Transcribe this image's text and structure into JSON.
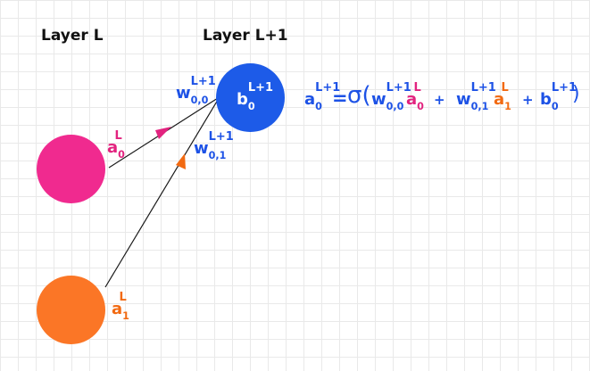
{
  "layers": {
    "left": "Layer L",
    "right": "Layer L+1"
  },
  "nodes": {
    "a0": {
      "color": "#f02a8f"
    },
    "a1": {
      "color": "#fb7626"
    },
    "b0": {
      "color": "#1d5be8"
    }
  },
  "labels": {
    "a0": {
      "base": "a",
      "sub": "0",
      "sup": "L"
    },
    "a1": {
      "base": "a",
      "sub": "1",
      "sup": "L"
    },
    "w00": {
      "base": "w",
      "sub": "0,0",
      "sup": "L+1"
    },
    "w01": {
      "base": "w",
      "sub": "0,1",
      "sup": "L+1"
    },
    "b0": {
      "base": "b",
      "sub": "0",
      "sup": "L+1"
    }
  },
  "equation": {
    "lhs": {
      "base": "a",
      "sub": "0",
      "sup": "L+1"
    },
    "equals": "=",
    "sigma": "σ(",
    "w00": {
      "base": "w",
      "sub": "0,0",
      "sup": "L+1"
    },
    "a0": {
      "base": "a",
      "sub": "0",
      "sup": "L"
    },
    "plus1": "+",
    "w01": {
      "base": "w",
      "sub": "0,1",
      "sup": "L+1"
    },
    "a1": {
      "base": "a",
      "sub": "1",
      "sup": "L"
    },
    "plus2": "+",
    "b0": {
      "base": "b",
      "sub": "0",
      "sup": "L+1"
    },
    "close": ")"
  },
  "colors": {
    "blue": "#1d52e6",
    "pink": "#e2237f",
    "orange": "#f26a12",
    "line": "#1a1a1a"
  }
}
